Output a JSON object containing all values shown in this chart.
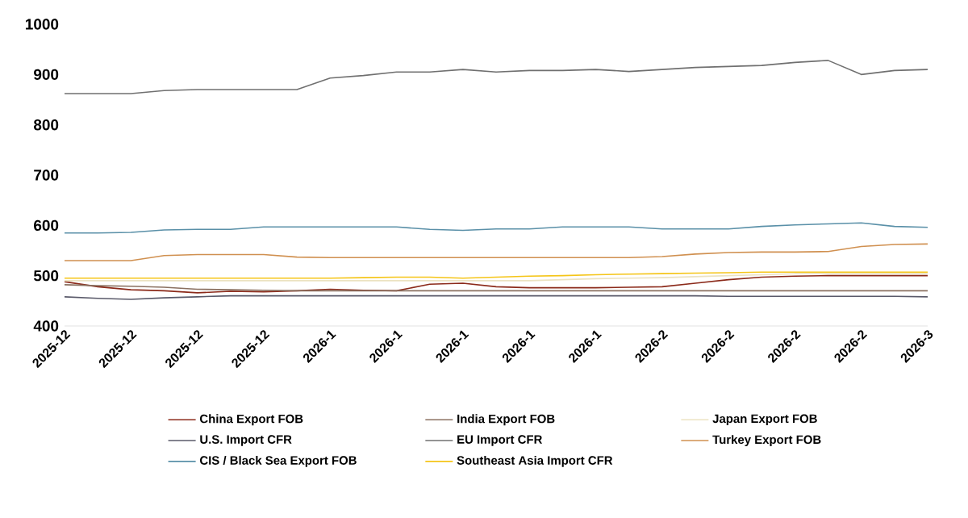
{
  "chart_data": {
    "type": "line",
    "categories": [
      "2025-12",
      null,
      "2025-12",
      null,
      "2025-12",
      null,
      "2025-12",
      null,
      "2026-1",
      null,
      "2026-1",
      null,
      "2026-1",
      null,
      "2026-1",
      null,
      "2026-1",
      null,
      "2026-2",
      null,
      "2026-2",
      null,
      "2026-2",
      null,
      "2026-2",
      null,
      "2026-3"
    ],
    "ylim": [
      400,
      1000
    ],
    "yticks": [
      400,
      500,
      600,
      700,
      800,
      900,
      1000
    ],
    "legend": "bottom",
    "marker": "none",
    "line_style": "solid",
    "grid": false,
    "series": [
      {
        "name": "China Export FOB",
        "color": "#8b2a1a",
        "values": [
          488,
          478,
          472,
          470,
          466,
          469,
          468,
          470,
          473,
          471,
          470,
          483,
          485,
          478,
          476,
          476,
          476,
          477,
          478,
          485,
          492,
          497,
          499,
          500,
          500,
          500,
          500
        ]
      },
      {
        "name": "India Export FOB",
        "color": "#8a7060",
        "values": [
          482,
          480,
          479,
          477,
          473,
          472,
          471,
          470,
          470,
          470,
          470,
          470,
          470,
          470,
          470,
          470,
          470,
          470,
          470,
          470,
          470,
          470,
          470,
          470,
          470,
          470,
          470
        ]
      },
      {
        "name": "Japan Export FOB",
        "color": "#ece3c2",
        "values": [
          490,
          490,
          490,
          490,
          490,
          490,
          490,
          490,
          490,
          490,
          490,
          490,
          490,
          490,
          490,
          492,
          494,
          495,
          496,
          498,
          500,
          502,
          504,
          504,
          504,
          504,
          504
        ]
      },
      {
        "name": "U.S. Import CFR",
        "color": "#5a5a6a",
        "values": [
          458,
          455,
          453,
          456,
          458,
          460,
          460,
          460,
          460,
          460,
          460,
          460,
          460,
          460,
          460,
          460,
          460,
          460,
          460,
          460,
          459,
          459,
          459,
          459,
          459,
          459,
          458
        ]
      },
      {
        "name": "EU Import CFR",
        "color": "#707070",
        "values": [
          862,
          862,
          862,
          868,
          870,
          870,
          870,
          870,
          893,
          898,
          905,
          905,
          910,
          905,
          908,
          908,
          910,
          906,
          910,
          914,
          916,
          918,
          924,
          928,
          900,
          908,
          910
        ]
      },
      {
        "name": "Turkey Export FOB",
        "color": "#d09050",
        "values": [
          530,
          530,
          530,
          540,
          542,
          542,
          542,
          537,
          536,
          536,
          536,
          536,
          536,
          536,
          536,
          536,
          536,
          536,
          538,
          543,
          546,
          547,
          547,
          548,
          558,
          562,
          563
        ]
      },
      {
        "name": "CIS / Black Sea Export FOB",
        "color": "#5a90a8",
        "values": [
          585,
          585,
          586,
          591,
          592,
          592,
          597,
          597,
          597,
          597,
          597,
          592,
          590,
          593,
          593,
          597,
          597,
          597,
          593,
          593,
          593,
          598,
          601,
          603,
          605,
          598,
          596
        ]
      },
      {
        "name": "Southeast Asia Import CFR",
        "color": "#f5c518",
        "values": [
          495,
          495,
          495,
          495,
          495,
          495,
          495,
          495,
          495,
          496,
          497,
          497,
          495,
          497,
          499,
          500,
          502,
          503,
          504,
          505,
          506,
          507,
          507,
          507,
          507,
          507,
          507
        ]
      }
    ]
  }
}
